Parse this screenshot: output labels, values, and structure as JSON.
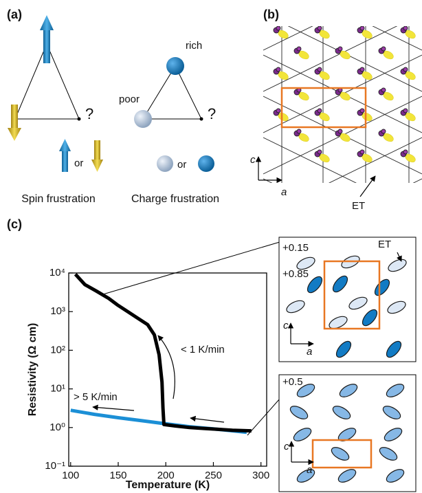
{
  "panel_a": {
    "label": "(a)",
    "spin": {
      "question": "?",
      "or": "or",
      "caption": "Spin frustration"
    },
    "charge": {
      "rich": "rich",
      "poor": "poor",
      "question": "?",
      "or": "or",
      "caption": "Charge frustration"
    }
  },
  "panel_b": {
    "label": "(b)",
    "axis_c": "c",
    "axis_a": "a",
    "molecule": "ET"
  },
  "panel_c": {
    "label": "(c)",
    "inset_top": {
      "charge_low": "+0.15",
      "charge_high": "+0.85",
      "molecule": "ET",
      "axis_c": "c",
      "axis_a": "a"
    },
    "inset_bottom": {
      "charge": "+0.5",
      "axis_c": "c",
      "axis_a": "a"
    }
  },
  "chart_data": {
    "type": "line",
    "x_label": "Temperature (K)",
    "y_label": "Resistivity (Ω cm)",
    "log_y": true,
    "xlim": [
      98,
      306
    ],
    "ylim": [
      0.1,
      10000
    ],
    "xticks": [
      100,
      150,
      200,
      250,
      300
    ],
    "yticks": [
      {
        "value": 0.1,
        "label": "10⁻¹"
      },
      {
        "value": 1,
        "label": "10⁰"
      },
      {
        "value": 10,
        "label": "10¹"
      },
      {
        "value": 100,
        "label": "10²"
      },
      {
        "value": 1000,
        "label": "10³"
      },
      {
        "value": 10000,
        "label": "10⁴"
      }
    ],
    "annotations": [
      "< 1 K/min",
      "> 5 K/min"
    ],
    "series": [
      {
        "color": "#1b8fd6",
        "x": [
          100,
          125,
          150,
          175,
          200,
          225,
          250,
          275,
          285
        ],
        "values": [
          2.8,
          2.2,
          1.8,
          1.5,
          1.25,
          1.05,
          0.92,
          0.8,
          0.75
        ]
      },
      {
        "color": "#000000",
        "x": [
          105,
          115,
          127,
          140,
          149,
          160,
          170,
          181,
          188,
          193,
          196,
          197,
          198,
          210,
          225,
          240,
          255,
          270,
          290
        ],
        "values": [
          9300,
          5000,
          3400,
          2200,
          1500,
          1000,
          690,
          460,
          250,
          76,
          15,
          3.2,
          1.2,
          1.1,
          1.0,
          0.95,
          0.9,
          0.85,
          0.82
        ]
      }
    ]
  }
}
